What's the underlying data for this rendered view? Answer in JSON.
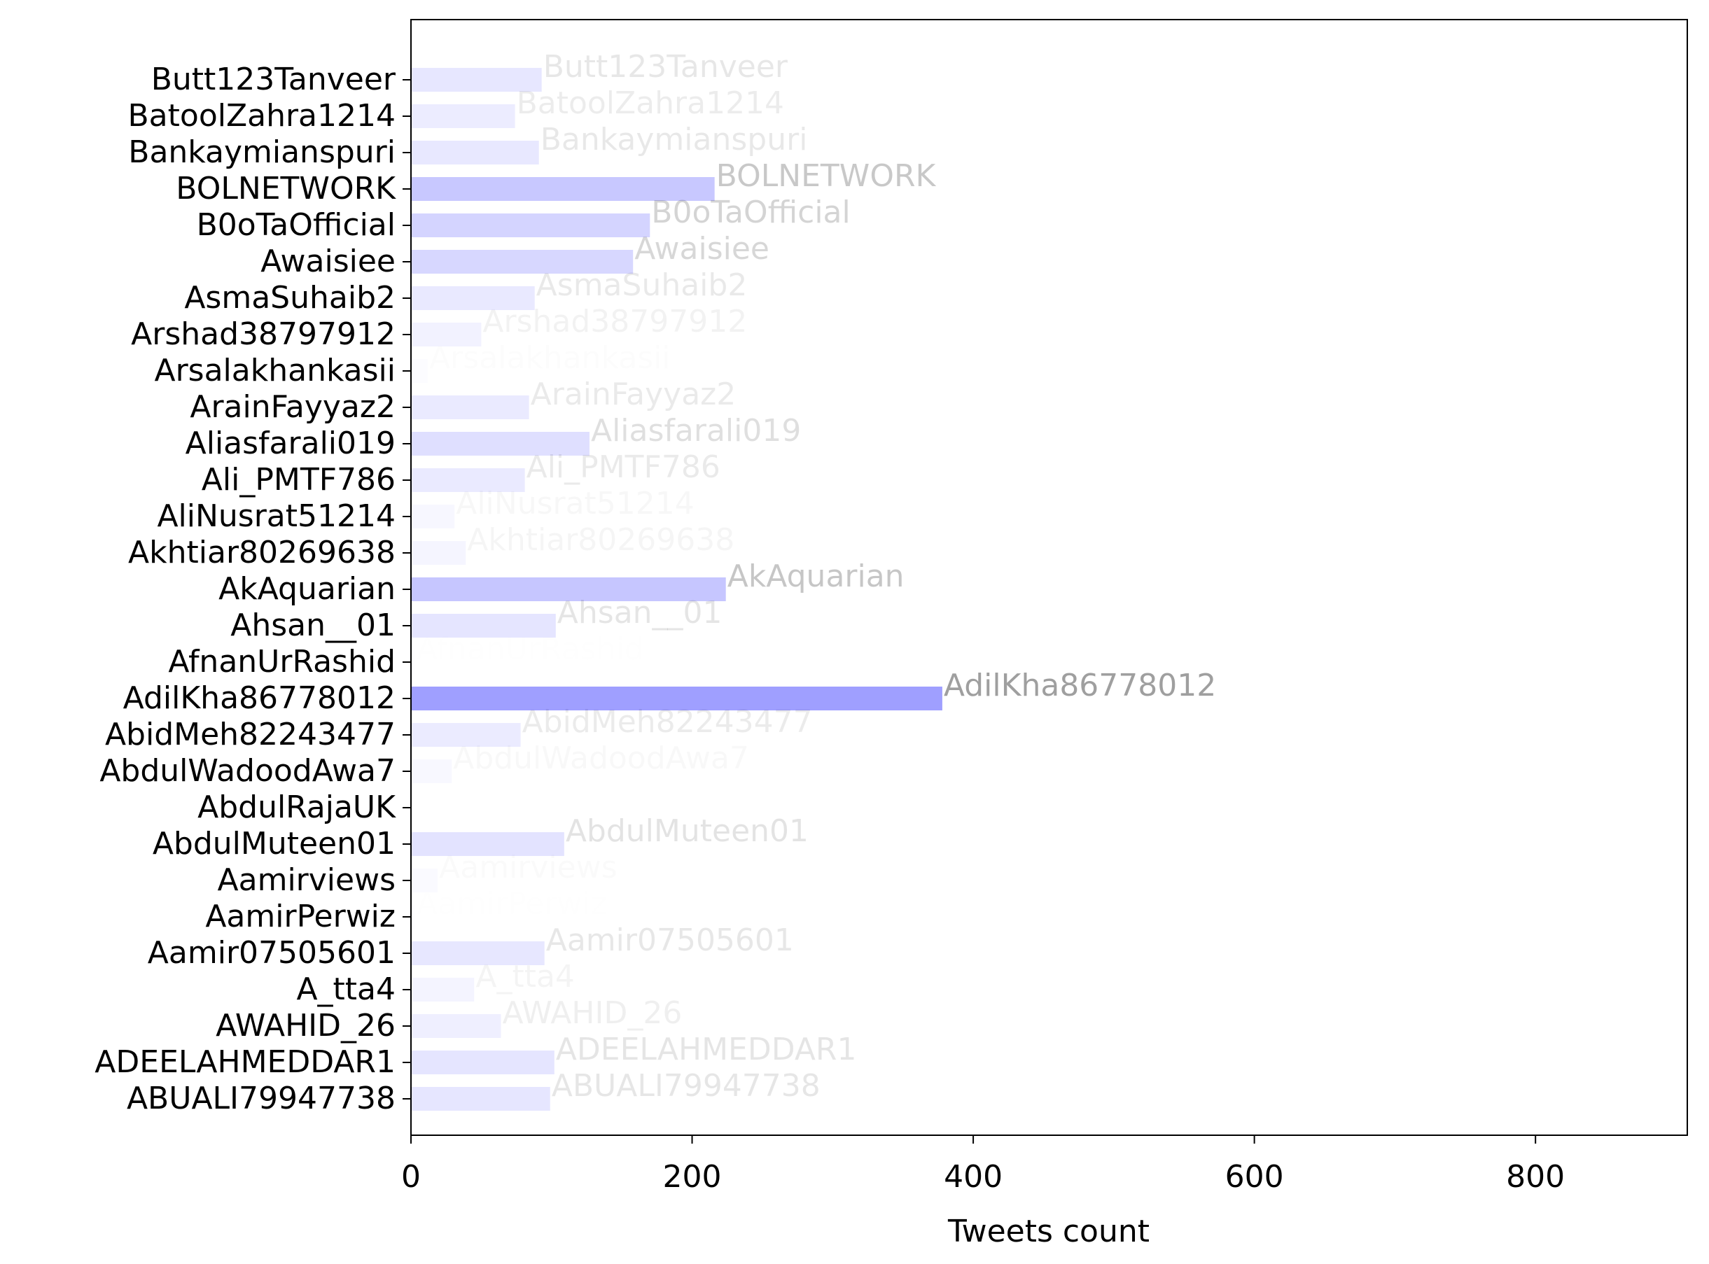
{
  "chart_data": {
    "type": "barh",
    "x_label": "Tweets count",
    "categories": [
      "Butt123Tanveer",
      "BatoolZahra1214",
      "Bankaymianspuri",
      "BOLNETWORK",
      "B0oTaOfficial",
      "Awaisiee",
      "AsmaSuhaib2",
      "Arshad38797912",
      "Arsalakhankasii",
      "ArainFayyaz2",
      "Aliasfarali019",
      "Ali_PMTF786",
      "AliNusrat51214",
      "Akhtiar80269638",
      "AkAquarian",
      "Ahsan__01",
      "AfnanUrRashid",
      "AdilKha86778012",
      "AbidMeh82243477",
      "AbdulWadoodAwa7",
      "AbdulRajaUK",
      "AbdulMuteen01",
      "Aamirviews",
      "AamirPerwiz",
      "Aamir07505601",
      "A_tta4",
      "AWAHID_26",
      "ADEELAHMEDDAR1",
      "ABUALI79947738"
    ],
    "values": [
      93,
      74,
      91,
      216,
      170,
      158,
      88,
      50,
      12,
      84,
      127,
      81,
      31,
      39,
      224,
      103,
      3,
      378,
      78,
      29,
      1,
      109,
      19,
      3,
      95,
      45,
      64,
      102,
      99
    ],
    "color": "#0000ff",
    "xlim": [
      0,
      908
    ],
    "xticks": [
      0,
      200,
      400,
      600,
      800
    ]
  }
}
